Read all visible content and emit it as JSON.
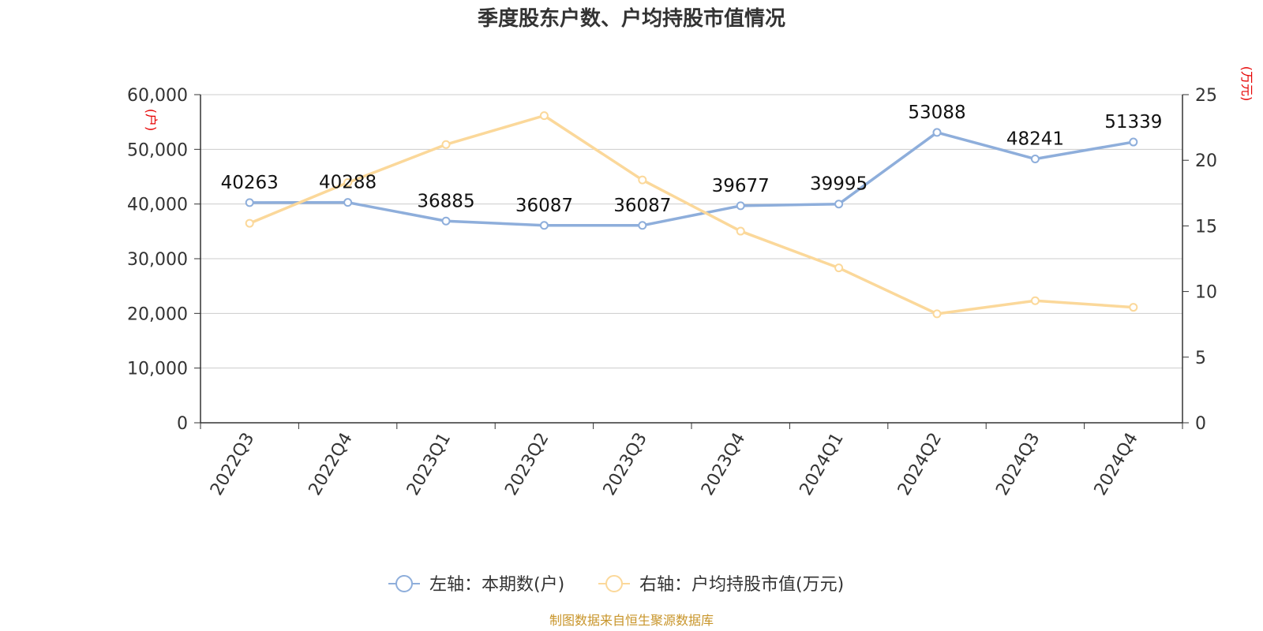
{
  "chart_data": {
    "type": "line",
    "title": "季度股东户数、户均持股市值情况",
    "categories": [
      "2022Q3",
      "2022Q4",
      "2023Q1",
      "2023Q2",
      "2023Q3",
      "2023Q4",
      "2024Q1",
      "2024Q2",
      "2024Q3",
      "2024Q4"
    ],
    "left_axis": {
      "unit": "(户)",
      "ylim": [
        0,
        60000
      ],
      "ticks": [
        "0",
        "10,000",
        "20,000",
        "30,000",
        "40,000",
        "50,000",
        "60,000"
      ]
    },
    "right_axis": {
      "unit": "(万元)",
      "ylim": [
        0,
        25
      ],
      "ticks": [
        "0",
        "5",
        "10",
        "15",
        "20",
        "25"
      ]
    },
    "series": [
      {
        "name": "左轴：本期数(户)",
        "axis": "left",
        "color": "#8eaedb",
        "values": [
          40263,
          40288,
          36885,
          36087,
          36087,
          39677,
          39995,
          53088,
          48241,
          51339
        ],
        "labels": [
          "40263",
          "40288",
          "36885",
          "36087",
          "36087",
          "39677",
          "39995",
          "53088",
          "48241",
          "51339"
        ]
      },
      {
        "name": "右轴：户均持股市值(万元)",
        "axis": "right",
        "color": "#fbd89a",
        "values": [
          15.2,
          18.3,
          21.2,
          23.4,
          18.5,
          14.6,
          11.8,
          8.3,
          9.3,
          8.8
        ]
      }
    ],
    "grid": true,
    "legend": "bottom-center",
    "source": "制图数据来自恒生聚源数据库"
  }
}
